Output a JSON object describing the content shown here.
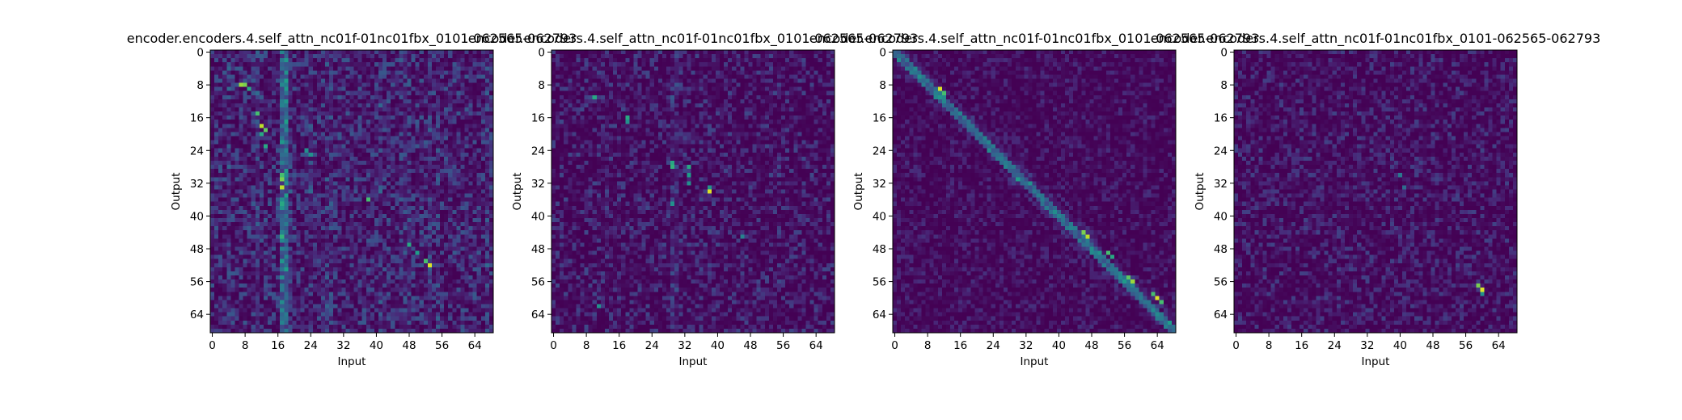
{
  "figure": {
    "colormap": "viridis",
    "background": "#ffffff"
  },
  "chart_data": [
    {
      "type": "heatmap",
      "title": "encoder.encoders.4.self_attn_nc01f-01nc01fbx_0101-062565-062793",
      "xlabel": "Input",
      "ylabel": "Output",
      "x_ticks": [
        "0",
        "8",
        "16",
        "24",
        "32",
        "40",
        "48",
        "56",
        "64"
      ],
      "y_ticks": [
        "0",
        "8",
        "16",
        "24",
        "32",
        "40",
        "48",
        "56",
        "64"
      ],
      "grid_size": [
        69,
        69
      ],
      "pattern": "columns",
      "hotspots": [
        [
          7,
          8,
          0.85
        ],
        [
          8,
          8,
          0.8
        ],
        [
          11,
          15,
          0.7
        ],
        [
          12,
          18,
          0.9
        ],
        [
          13,
          19,
          0.75
        ],
        [
          12,
          20,
          0.6
        ],
        [
          13,
          23,
          0.6
        ],
        [
          23,
          24,
          0.5
        ],
        [
          24,
          25,
          0.5
        ],
        [
          17,
          30,
          0.7
        ],
        [
          17,
          31,
          0.8
        ],
        [
          17,
          33,
          0.9
        ],
        [
          18,
          35,
          0.55
        ],
        [
          17,
          37,
          0.6
        ],
        [
          38,
          36,
          0.7
        ],
        [
          17,
          45,
          0.65
        ],
        [
          48,
          47,
          0.6
        ],
        [
          50,
          49,
          0.55
        ],
        [
          52,
          51,
          0.7
        ],
        [
          53,
          52,
          0.95
        ],
        [
          17,
          55,
          0.5
        ],
        [
          9,
          9,
          0.6
        ]
      ]
    },
    {
      "type": "heatmap",
      "title": "encoder.encoders.4.self_attn_nc01f-01nc01fbx_0101-062565-062793",
      "xlabel": "Input",
      "ylabel": "Output",
      "x_ticks": [
        "0",
        "8",
        "16",
        "24",
        "32",
        "40",
        "48",
        "56",
        "64"
      ],
      "y_ticks": [
        "0",
        "8",
        "16",
        "24",
        "32",
        "40",
        "48",
        "56",
        "64"
      ],
      "grid_size": [
        69,
        69
      ],
      "pattern": "sparse",
      "hotspots": [
        [
          10,
          11,
          0.6
        ],
        [
          18,
          16,
          0.6
        ],
        [
          18,
          17,
          0.5
        ],
        [
          29,
          27,
          0.6
        ],
        [
          29,
          28,
          0.65
        ],
        [
          33,
          28,
          0.6
        ],
        [
          33,
          30,
          0.55
        ],
        [
          33,
          32,
          0.5
        ],
        [
          38,
          33,
          0.5
        ],
        [
          38,
          34,
          0.95
        ],
        [
          29,
          37,
          0.5
        ],
        [
          46,
          45,
          0.45
        ],
        [
          11,
          62,
          0.5
        ]
      ]
    },
    {
      "type": "heatmap",
      "title": "encoder.encoders.4.self_attn_nc01f-01nc01fbx_0101-062565-062793",
      "xlabel": "Input",
      "ylabel": "Output",
      "x_ticks": [
        "0",
        "8",
        "16",
        "24",
        "32",
        "40",
        "48",
        "56",
        "64"
      ],
      "y_ticks": [
        "0",
        "8",
        "16",
        "24",
        "32",
        "40",
        "48",
        "56",
        "64"
      ],
      "grid_size": [
        69,
        69
      ],
      "pattern": "diagonal",
      "hotspots": [
        [
          11,
          9,
          0.95
        ],
        [
          12,
          10,
          0.7
        ],
        [
          46,
          44,
          0.8
        ],
        [
          47,
          45,
          0.9
        ],
        [
          52,
          49,
          0.7
        ],
        [
          53,
          50,
          0.6
        ],
        [
          57,
          55,
          0.75
        ],
        [
          58,
          56,
          0.85
        ],
        [
          63,
          59,
          0.7
        ],
        [
          64,
          60,
          0.95
        ],
        [
          65,
          61,
          0.7
        ]
      ]
    },
    {
      "type": "heatmap",
      "title": "encoder.encoders.4.self_attn_nc01f-01nc01fbx_0101-062565-062793",
      "xlabel": "Input",
      "ylabel": "Output",
      "x_ticks": [
        "0",
        "8",
        "16",
        "24",
        "32",
        "40",
        "48",
        "56",
        "64"
      ],
      "y_ticks": [
        "0",
        "8",
        "16",
        "24",
        "32",
        "40",
        "48",
        "56",
        "64"
      ],
      "grid_size": [
        69,
        69
      ],
      "pattern": "faint",
      "hotspots": [
        [
          59,
          57,
          0.8
        ],
        [
          60,
          58,
          0.95
        ],
        [
          60,
          59,
          0.5
        ],
        [
          40,
          30,
          0.4
        ],
        [
          41,
          33,
          0.35
        ]
      ]
    }
  ]
}
